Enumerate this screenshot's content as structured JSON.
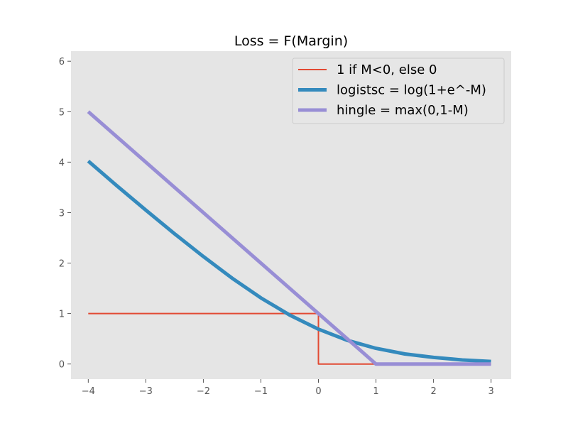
{
  "chart_data": {
    "type": "line",
    "title": "Loss = F(Margin)",
    "xlabel": "",
    "ylabel": "",
    "xlim": [
      -4.3,
      3.35
    ],
    "ylim": [
      -0.3,
      6.2
    ],
    "xticks": [
      -4,
      -3,
      -2,
      -1,
      0,
      1,
      2,
      3
    ],
    "yticks": [
      0,
      1,
      2,
      3,
      4,
      5,
      6
    ],
    "xtick_labels": [
      "−4",
      "−3",
      "−2",
      "−1",
      "0",
      "1",
      "2",
      "3"
    ],
    "ytick_labels": [
      "0",
      "1",
      "2",
      "3",
      "4",
      "5",
      "6"
    ],
    "grid": false,
    "legend_position": "top-right",
    "background": "#e5e5e5",
    "series": [
      {
        "name": "1 if M<0, else 0",
        "color": "#e24a33",
        "line_width": 2,
        "x": [
          -4,
          0,
          0,
          3
        ],
        "y": [
          1,
          1,
          0,
          0
        ]
      },
      {
        "name": "logistsc = log(1+e^-M)",
        "color": "#348abd",
        "line_width": 5,
        "x": [
          -4,
          -3.5,
          -3,
          -2.5,
          -2,
          -1.5,
          -1,
          -0.5,
          0,
          0.5,
          1,
          1.5,
          2,
          2.5,
          3
        ],
        "y": [
          4.02,
          3.53,
          3.05,
          2.58,
          2.13,
          1.7,
          1.31,
          0.97,
          0.69,
          0.47,
          0.31,
          0.2,
          0.13,
          0.08,
          0.05
        ]
      },
      {
        "name": "hingle = max(0,1-M)",
        "color": "#988ed5",
        "line_width": 5,
        "x": [
          -4,
          1,
          3
        ],
        "y": [
          5,
          0,
          0
        ]
      }
    ]
  }
}
